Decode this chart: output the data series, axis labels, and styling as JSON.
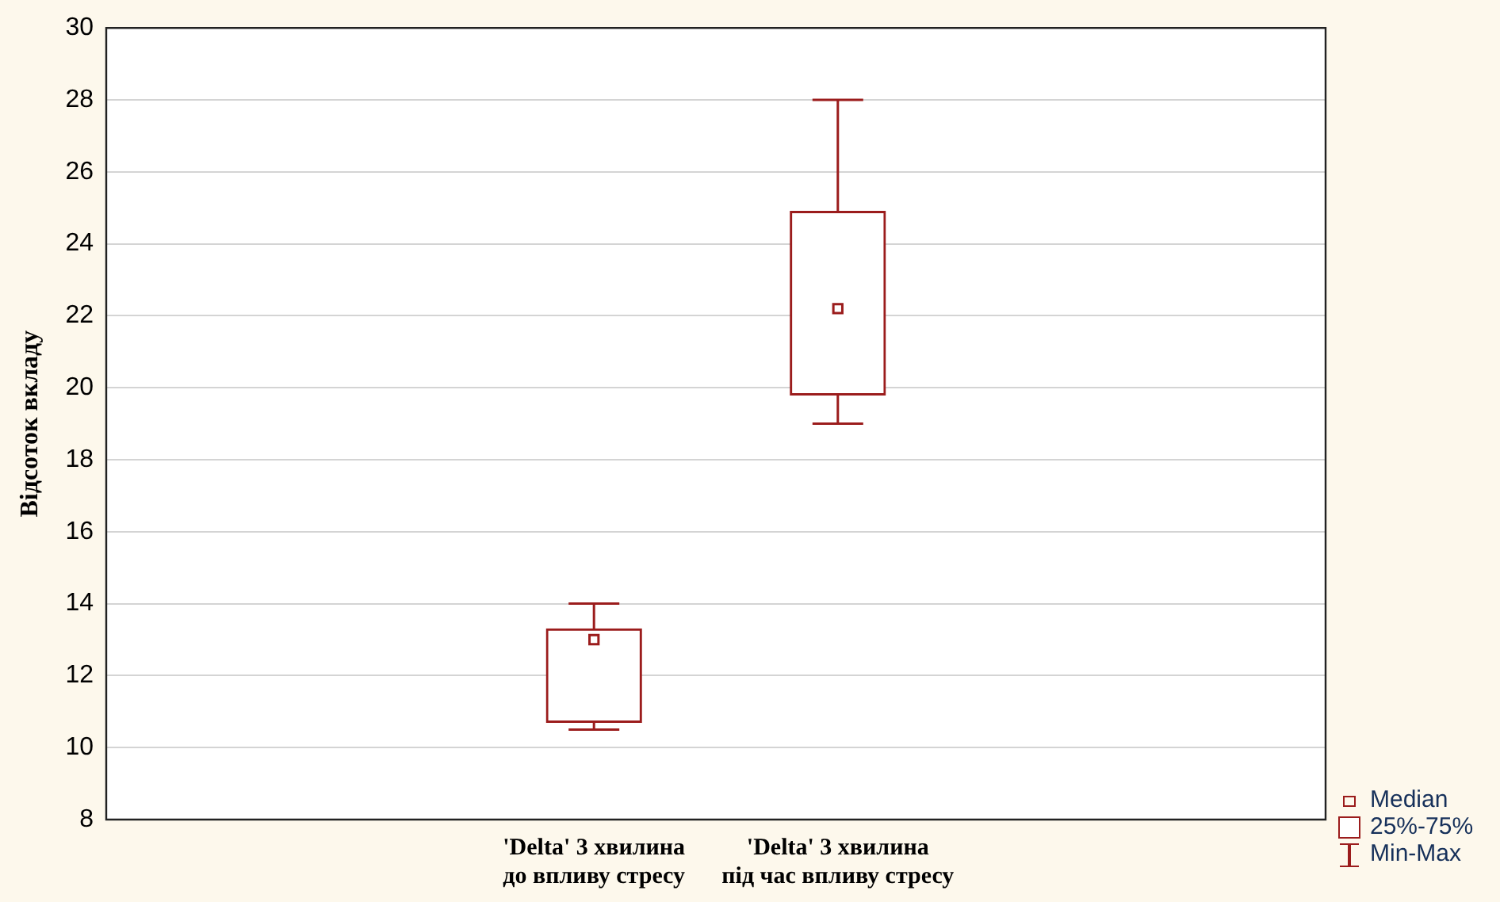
{
  "chart_data": {
    "type": "box",
    "ylabel": "Відсоток вкладу",
    "categories": [
      "'Delta' 3 хвилина до впливу стресу",
      "'Delta' 3 хвилина під час впливу стресу"
    ],
    "series": [
      {
        "color": "#9b1c1c",
        "boxes": [
          {
            "low": 10.5,
            "q1": 10.7,
            "median": 13.0,
            "q3": 13.3,
            "high": 14.0
          },
          {
            "low": 19.0,
            "q1": 19.8,
            "median": 22.2,
            "q3": 24.9,
            "high": 28.0
          }
        ]
      }
    ],
    "ylim": [
      8,
      30
    ],
    "yticks": [
      8,
      10,
      12,
      14,
      16,
      18,
      20,
      22,
      24,
      26,
      28,
      30
    ],
    "grid": "y",
    "annotations": [
      "Median",
      "25%-75%",
      "Min-Max"
    ]
  }
}
